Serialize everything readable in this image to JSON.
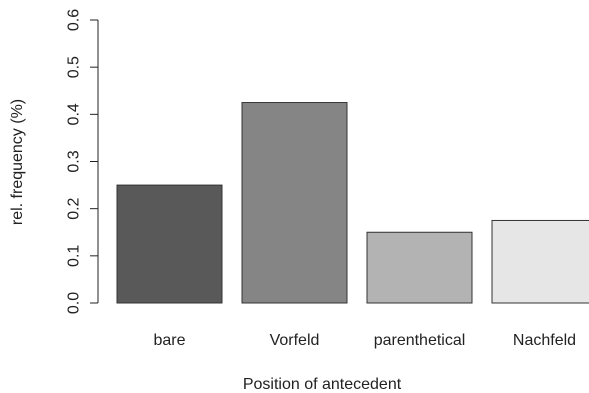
{
  "chart_data": {
    "type": "bar",
    "categories": [
      "bare",
      "Vorfeld",
      "parenthetical",
      "Nachfeld"
    ],
    "values": [
      0.25,
      0.425,
      0.15,
      0.175
    ],
    "colors": [
      "#595959",
      "#858585",
      "#b3b3b3",
      "#e6e6e6"
    ],
    "xlabel": "Position of antecedent",
    "ylabel": "rel. frequency (%)",
    "ylim": [
      0,
      0.6
    ],
    "yticks": [
      0.0,
      0.1,
      0.2,
      0.3,
      0.4,
      0.5,
      0.6
    ],
    "ytick_labels": [
      "0.0",
      "0.1",
      "0.2",
      "0.3",
      "0.4",
      "0.5",
      "0.6"
    ],
    "grid": false,
    "legend": "none"
  }
}
